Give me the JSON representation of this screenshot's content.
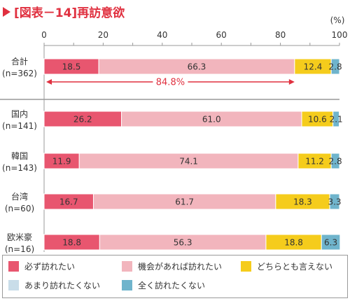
{
  "title": "[図表－14]再訪意欲",
  "title_marker_color": "#e0303f",
  "unit_label": "(%)",
  "colors": {
    "must": "#e8566f",
    "chance": "#f2b5bd",
    "neither": "#f5cc1c",
    "notmuch": "#c9dde9",
    "never": "#6fb4cc",
    "bracket": "#e0303f",
    "axis": "#999999",
    "title": "#e0303f"
  },
  "chart_data": {
    "type": "bar",
    "orientation": "horizontal",
    "stacked": true,
    "categories": [
      "合計\n(n=362)",
      "国内\n(n=141)",
      "韓国\n(n=143)",
      "台湾\n(n=60)",
      "欧米豪\n(n=16)"
    ],
    "series": [
      {
        "name": "必ず訪れたい",
        "values": [
          18.5,
          26.2,
          11.9,
          16.7,
          18.8
        ]
      },
      {
        "name": "機会があれば訪れたい",
        "values": [
          66.3,
          61.0,
          74.1,
          61.7,
          56.3
        ]
      },
      {
        "name": "どちらとも言えない",
        "values": [
          12.4,
          10.6,
          11.2,
          18.3,
          18.8
        ]
      },
      {
        "name": "あまり訪れたくない",
        "values": [
          0,
          0,
          0,
          0,
          0
        ]
      },
      {
        "name": "全く訪れたくない",
        "values": [
          2.8,
          2.1,
          2.8,
          3.3,
          6.3
        ]
      }
    ],
    "value_labels": [
      [
        "18.5",
        "66.3",
        "12.4",
        "2.8"
      ],
      [
        "26.2",
        "61.0",
        "10.6",
        "2.1"
      ],
      [
        "11.9",
        "74.1",
        "11.2",
        "2.8"
      ],
      [
        "16.7",
        "61.7",
        "18.3",
        "3.3"
      ],
      [
        "18.8",
        "56.3",
        "18.8",
        "6.3"
      ]
    ],
    "xlim": [
      0,
      100
    ],
    "xticks": [
      0,
      20,
      40,
      60,
      80,
      100
    ],
    "annotation": {
      "text": "84.8%",
      "from": 0,
      "to": 84.8,
      "row": 0
    },
    "legend_position": "bottom"
  },
  "legend": [
    {
      "label": "必ず訪れたい",
      "color": "#e8566f"
    },
    {
      "label": "機会があれば訪れたい",
      "color": "#f2b5bd"
    },
    {
      "label": "どちらとも言えない",
      "color": "#f5cc1c"
    },
    {
      "label": "あまり訪れたくない",
      "color": "#c9dde9"
    },
    {
      "label": "全く訪れたくない",
      "color": "#6fb4cc"
    }
  ]
}
